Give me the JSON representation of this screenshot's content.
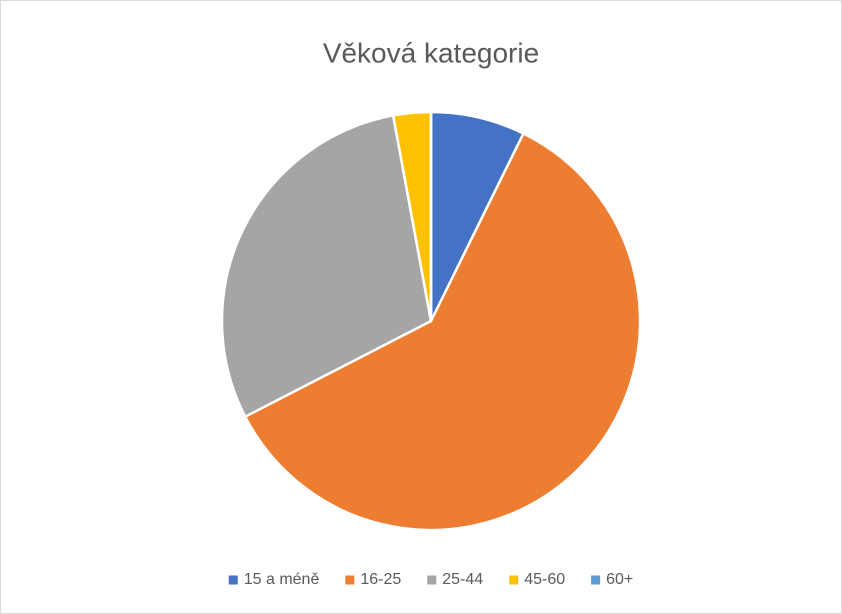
{
  "chart_data": {
    "type": "pie",
    "title": "Věková kategorie",
    "categories": [
      "15 a méně",
      "16-25",
      "25-44",
      "45-60",
      "60+"
    ],
    "values": [
      7.3,
      60.2,
      29.7,
      2.9,
      0
    ],
    "colors": [
      "#4472c4",
      "#ed7d31",
      "#a5a5a5",
      "#ffc000",
      "#5b9bd5"
    ],
    "legend": "bottom"
  }
}
